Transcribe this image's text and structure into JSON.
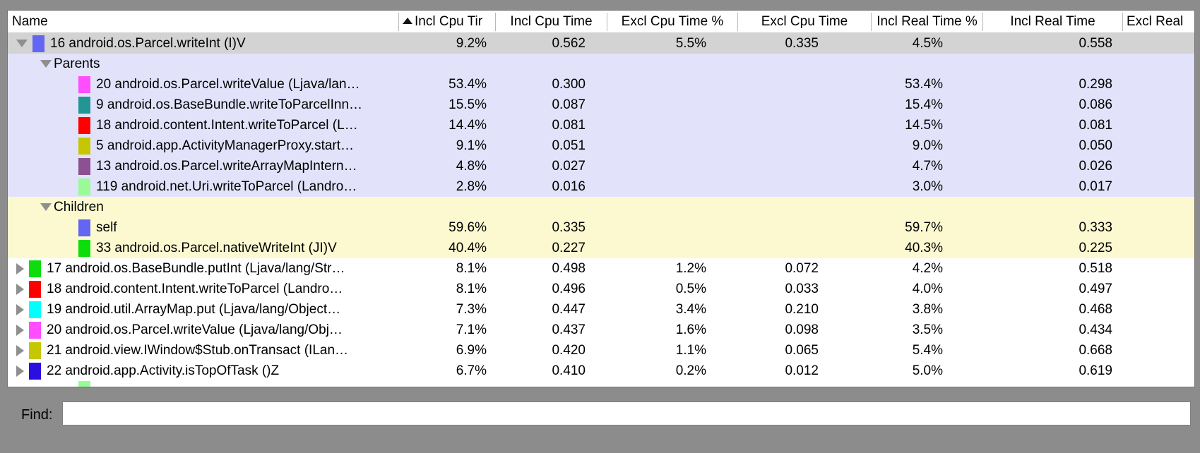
{
  "header": {
    "columns": [
      {
        "label": "Name"
      },
      {
        "label": "Incl Cpu Tir",
        "sort": "asc"
      },
      {
        "label": "Incl Cpu Time"
      },
      {
        "label": "Excl Cpu Time %"
      },
      {
        "label": "Excl Cpu Time"
      },
      {
        "label": "Incl Real Time %"
      },
      {
        "label": "Incl Real Time"
      },
      {
        "label": "Excl Real"
      }
    ]
  },
  "table": {
    "rows": [
      {
        "kind": "method",
        "indent": 0,
        "arrow": "down",
        "chip": "#6365f3",
        "bg": "selected_row",
        "selected": true,
        "name": "16 android.os.Parcel.writeInt (I)V",
        "values": [
          "9.2%",
          "0.562",
          "5.5%",
          "0.335",
          "4.5%",
          "0.558"
        ]
      },
      {
        "kind": "section",
        "indent": 1,
        "arrow": "down",
        "bg": "parents_section",
        "name": "Parents"
      },
      {
        "kind": "method",
        "indent": 2,
        "chip": "#ff4dff",
        "bg": "parents_section",
        "name": "20 android.os.Parcel.writeValue (Ljava/lan…",
        "values": [
          "53.4%",
          "0.300",
          "",
          "",
          "53.4%",
          "0.298"
        ]
      },
      {
        "kind": "method",
        "indent": 2,
        "chip": "#219695",
        "bg": "parents_section",
        "name": "9 android.os.BaseBundle.writeToParcelInn…",
        "values": [
          "15.5%",
          "0.087",
          "",
          "",
          "15.4%",
          "0.086"
        ]
      },
      {
        "kind": "method",
        "indent": 2,
        "chip": "#ff0000",
        "bg": "parents_section",
        "name": "18 android.content.Intent.writeToParcel (L…",
        "values": [
          "14.4%",
          "0.081",
          "",
          "",
          "14.5%",
          "0.081"
        ]
      },
      {
        "kind": "method",
        "indent": 2,
        "chip": "#c6c602",
        "bg": "parents_section",
        "name": "5 android.app.ActivityManagerProxy.start…",
        "values": [
          "9.1%",
          "0.051",
          "",
          "",
          "9.0%",
          "0.050"
        ]
      },
      {
        "kind": "method",
        "indent": 2,
        "chip": "#8b5192",
        "bg": "parents_section",
        "name": "13 android.os.Parcel.writeArrayMapIntern…",
        "values": [
          "4.8%",
          "0.027",
          "",
          "",
          "4.7%",
          "0.026"
        ]
      },
      {
        "kind": "method",
        "indent": 2,
        "chip": "#98fb98",
        "bg": "parents_section",
        "name": "119 android.net.Uri.writeToParcel (Landro…",
        "values": [
          "2.8%",
          "0.016",
          "",
          "",
          "3.0%",
          "0.017"
        ]
      },
      {
        "kind": "section",
        "indent": 1,
        "arrow": "down",
        "bg": "children_section",
        "name": "Children"
      },
      {
        "kind": "method",
        "indent": 2,
        "chip": "#6365f3",
        "bg": "children_section",
        "name": "self",
        "values": [
          "59.6%",
          "0.335",
          "",
          "",
          "59.7%",
          "0.333"
        ]
      },
      {
        "kind": "method",
        "indent": 2,
        "chip": "#0ddd0d",
        "bg": "children_section",
        "name": "33 android.os.Parcel.nativeWriteInt (JI)V",
        "values": [
          "40.4%",
          "0.227",
          "",
          "",
          "40.3%",
          "0.225"
        ]
      },
      {
        "kind": "method",
        "indent": 0,
        "arrow": "right",
        "chip": "#0ddd0d",
        "bg": "row_default",
        "name": "17 android.os.BaseBundle.putInt (Ljava/lang/Str…",
        "values": [
          "8.1%",
          "0.498",
          "1.2%",
          "0.072",
          "4.2%",
          "0.518"
        ]
      },
      {
        "kind": "method",
        "indent": 0,
        "arrow": "right",
        "chip": "#ff0000",
        "bg": "row_default",
        "name": "18 android.content.Intent.writeToParcel (Landro…",
        "values": [
          "8.1%",
          "0.496",
          "0.5%",
          "0.033",
          "4.0%",
          "0.497"
        ]
      },
      {
        "kind": "method",
        "indent": 0,
        "arrow": "right",
        "chip": "#00ffff",
        "bg": "row_default",
        "name": "19 android.util.ArrayMap.put (Ljava/lang/Object…",
        "values": [
          "7.3%",
          "0.447",
          "3.4%",
          "0.210",
          "3.8%",
          "0.468"
        ]
      },
      {
        "kind": "method",
        "indent": 0,
        "arrow": "right",
        "chip": "#ff4dff",
        "bg": "row_default",
        "name": "20 android.os.Parcel.writeValue (Ljava/lang/Obj…",
        "values": [
          "7.1%",
          "0.437",
          "1.6%",
          "0.098",
          "3.5%",
          "0.434"
        ]
      },
      {
        "kind": "method",
        "indent": 0,
        "arrow": "right",
        "chip": "#c6c602",
        "bg": "row_default",
        "name": "21 android.view.IWindow$Stub.onTransact (ILan…",
        "values": [
          "6.9%",
          "0.420",
          "1.1%",
          "0.065",
          "5.4%",
          "0.668"
        ]
      },
      {
        "kind": "method",
        "indent": 0,
        "arrow": "right",
        "chip": "#2a10e0",
        "bg": "row_default",
        "name": "22 android.app.Activity.isTopOfTask ()Z",
        "values": [
          "6.7%",
          "0.410",
          "0.2%",
          "0.012",
          "5.0%",
          "0.619"
        ]
      },
      {
        "kind": "partial",
        "indent": 2,
        "chip": "#98fb98",
        "bg": "row_default",
        "name": ""
      }
    ]
  },
  "find": {
    "label": "Find:",
    "value": ""
  },
  "colors": {
    "selected_row": "#d3d3d3",
    "parents_section": "#e2e2fa",
    "children_section": "#fcf9d1",
    "row_default": "#ffffff",
    "frame": "#8c8c8c",
    "sort_icon": "#141414",
    "disclosure_triangle": "#8f8f8f"
  }
}
